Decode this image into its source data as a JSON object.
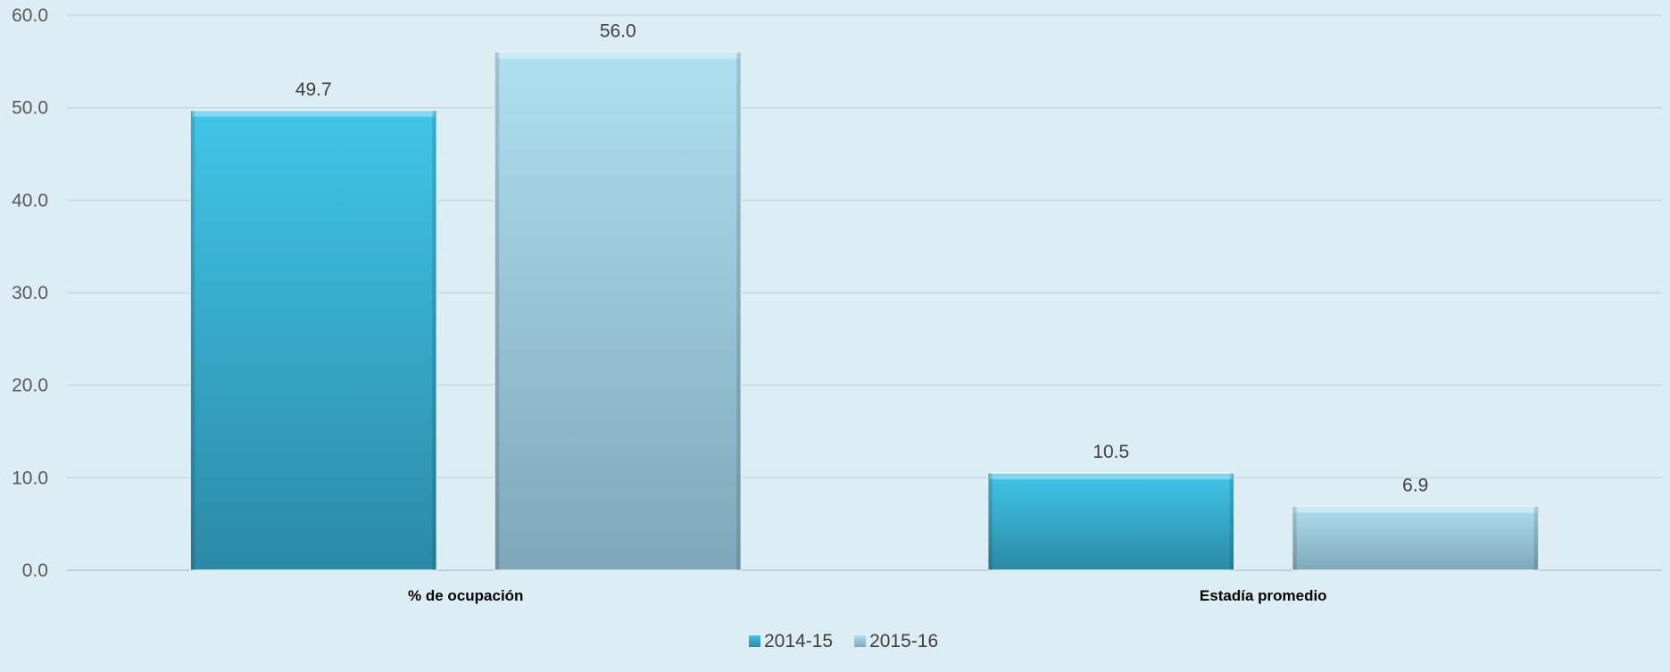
{
  "chart_data": {
    "type": "bar",
    "categories": [
      "% de ocupación",
      "Estadía promedio"
    ],
    "series": [
      {
        "name": "2014-15",
        "values": [
          49.7,
          10.5
        ],
        "color_top": "#40c5e8",
        "color_bottom": "#2b8aa6"
      },
      {
        "name": "2015-16",
        "values": [
          56.0,
          6.9
        ],
        "color_top": "#aee0f0",
        "color_bottom": "#7fa7ba"
      }
    ],
    "yticks": [
      "0.0",
      "10.0",
      "20.0",
      "30.0",
      "40.0",
      "50.0",
      "60.0"
    ],
    "data_labels": [
      [
        "49.7",
        "10.5"
      ],
      [
        "56.0",
        "6.9"
      ]
    ],
    "ylim": [
      0,
      60
    ],
    "grid": true,
    "legend_position": "bottom"
  }
}
